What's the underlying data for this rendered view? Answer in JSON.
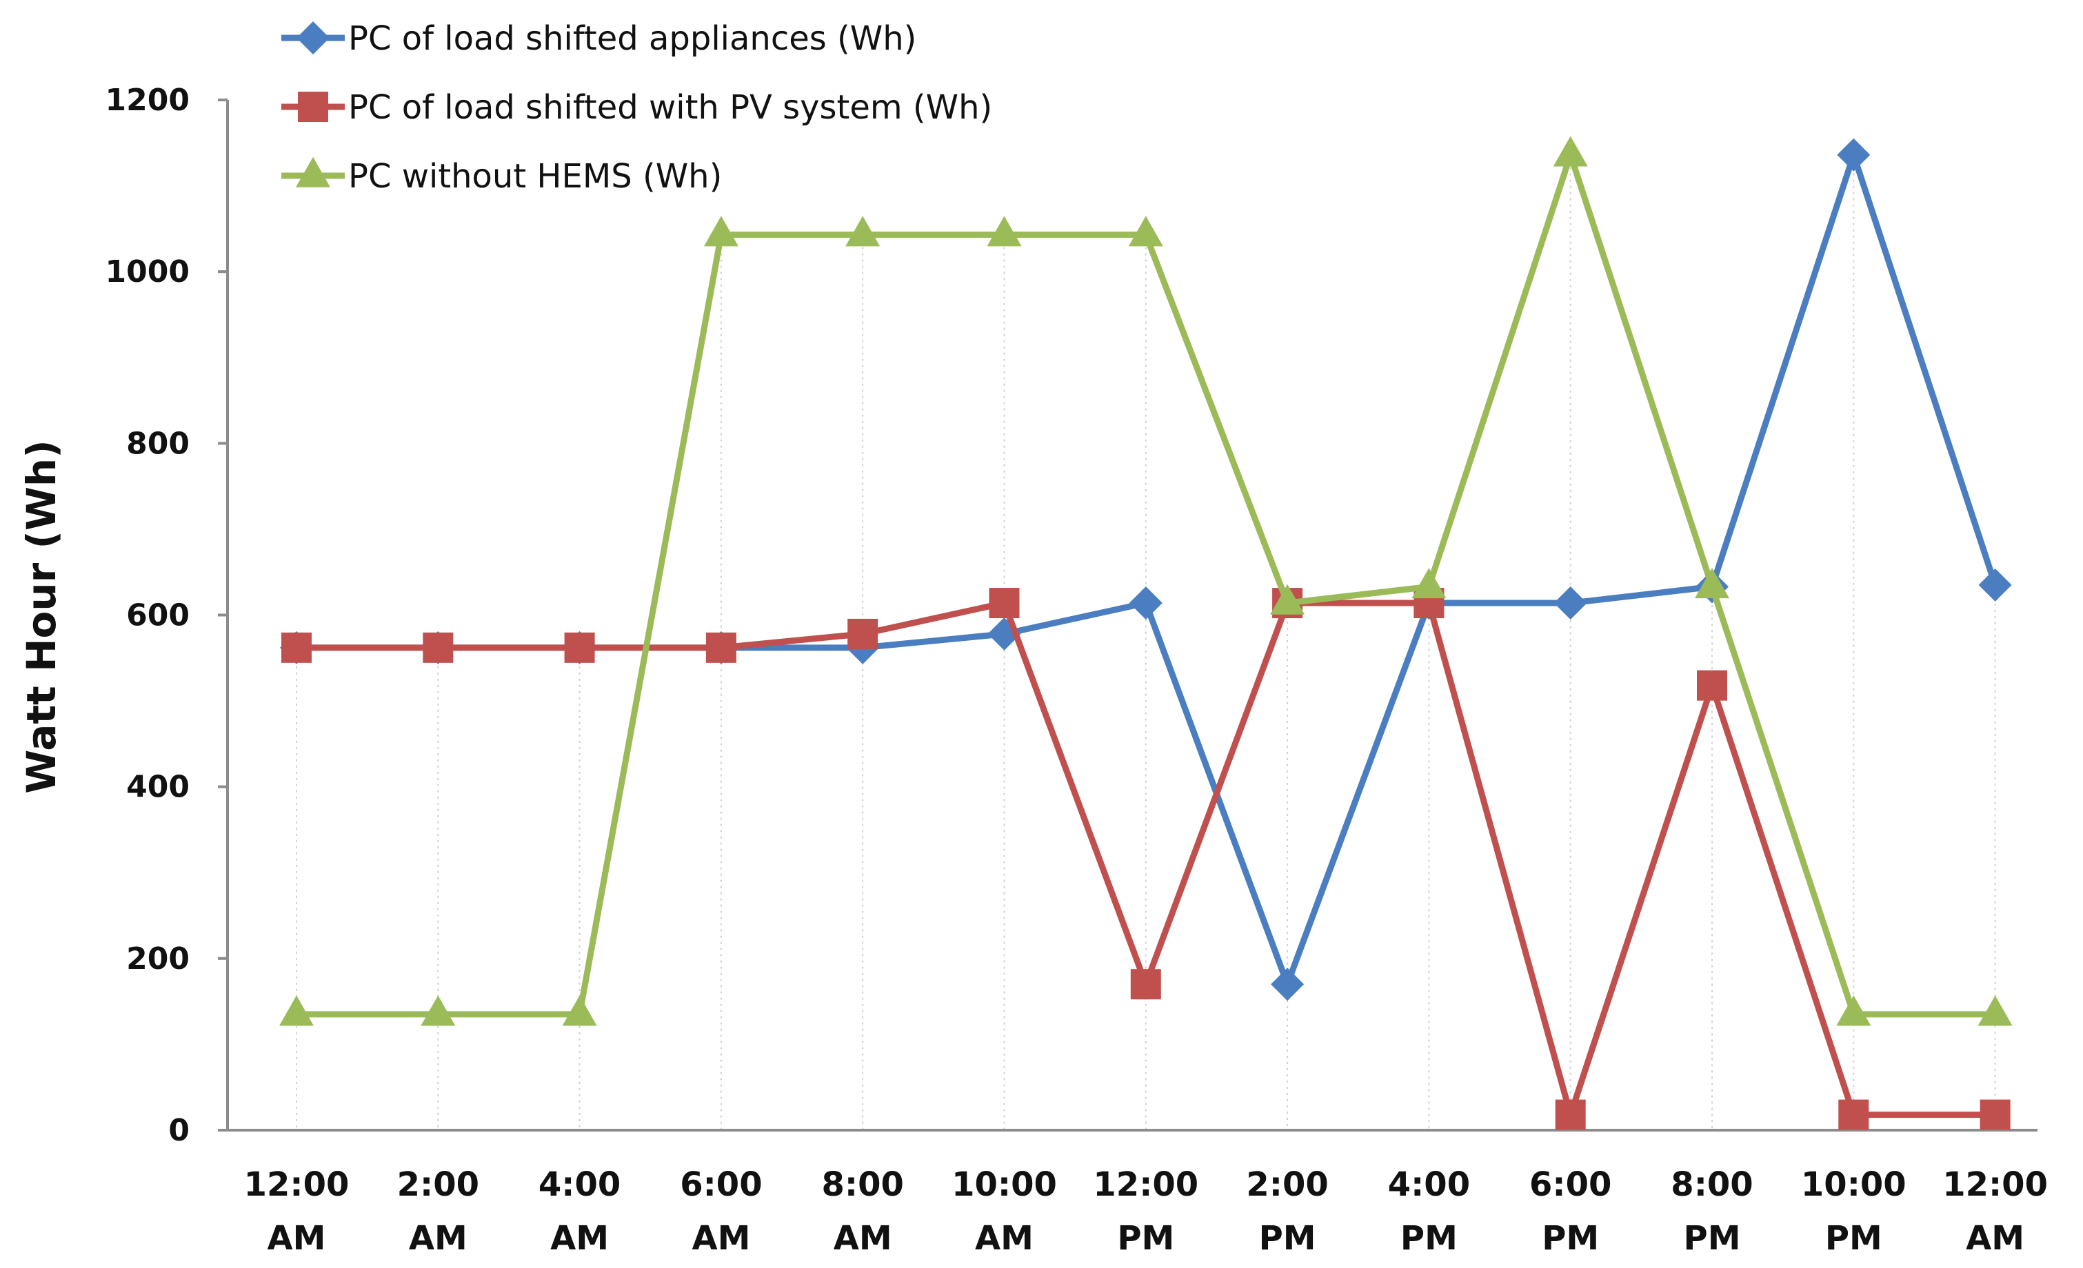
{
  "chart_data": {
    "type": "line",
    "title": "",
    "xlabel": "",
    "ylabel": "Watt Hour (Wh)",
    "ylim": [
      0,
      1200
    ],
    "yticks": [
      0,
      200,
      400,
      600,
      800,
      1000,
      1200
    ],
    "grid": "vertical dotted drop lines at each category",
    "legend": "top-left",
    "categories": [
      [
        "12:00",
        "AM"
      ],
      [
        "2:00",
        "AM"
      ],
      [
        "4:00",
        "AM"
      ],
      [
        "6:00",
        "AM"
      ],
      [
        "8:00",
        "AM"
      ],
      [
        "10:00",
        "AM"
      ],
      [
        "12:00",
        "PM"
      ],
      [
        "2:00",
        "PM"
      ],
      [
        "4:00",
        "PM"
      ],
      [
        "6:00",
        "PM"
      ],
      [
        "8:00",
        "PM"
      ],
      [
        "10:00",
        "PM"
      ],
      [
        "12:00",
        "AM"
      ]
    ],
    "series": [
      {
        "name": "PC of load shifted appliances (Wh)",
        "color": "#4A7EC0",
        "marker": "diamond",
        "values": [
          562,
          562,
          562,
          562,
          562,
          578,
          614,
          170,
          614,
          614,
          633,
          1136,
          635
        ]
      },
      {
        "name": "PC of load shifted with PV system (Wh)",
        "color": "#C0504D",
        "marker": "square",
        "values": [
          562,
          562,
          562,
          562,
          578,
          614,
          170,
          614,
          614,
          18,
          518,
          18,
          18
        ]
      },
      {
        "name": "PC without HEMS (Wh)",
        "color": "#9BBB59",
        "marker": "triangle",
        "values": [
          135,
          135,
          135,
          1043,
          1043,
          1043,
          1043,
          614,
          633,
          1136,
          633,
          135,
          135
        ]
      }
    ]
  }
}
